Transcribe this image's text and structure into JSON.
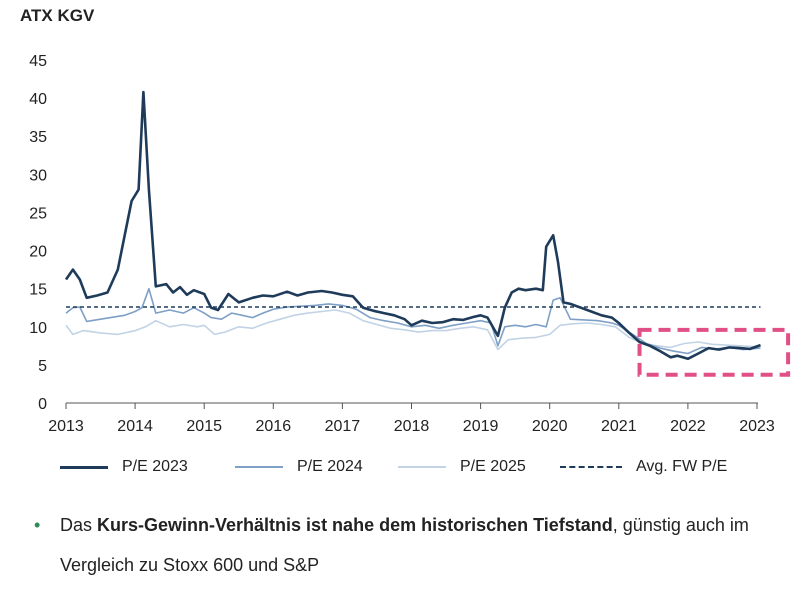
{
  "title": "ATX KGV",
  "chart_data": {
    "type": "line",
    "title": "ATX KGV",
    "xlabel": "",
    "ylabel": "",
    "xlim": [
      2013,
      2023
    ],
    "ylim": [
      0,
      45
    ],
    "yticks": [
      0,
      5,
      10,
      15,
      20,
      25,
      30,
      35,
      40,
      45
    ],
    "xticks": [
      2013,
      2014,
      2015,
      2016,
      2017,
      2018,
      2019,
      2020,
      2021,
      2022,
      2023
    ],
    "grid": false,
    "legend_position": "bottom",
    "series": [
      {
        "name": "P/E 2023",
        "color": "#1f3b5a",
        "style": "solid",
        "x": [
          2013.0,
          2013.1,
          2013.2,
          2013.3,
          2013.45,
          2013.6,
          2013.75,
          2013.85,
          2013.95,
          2014.05,
          2014.12,
          2014.2,
          2014.3,
          2014.45,
          2014.55,
          2014.65,
          2014.75,
          2014.85,
          2015.0,
          2015.1,
          2015.2,
          2015.35,
          2015.5,
          2015.7,
          2015.85,
          2016.0,
          2016.2,
          2016.35,
          2016.5,
          2016.7,
          2016.85,
          2017.0,
          2017.15,
          2017.3,
          2017.45,
          2017.6,
          2017.75,
          2017.9,
          2018.0,
          2018.15,
          2018.3,
          2018.45,
          2018.6,
          2018.75,
          2018.9,
          2019.0,
          2019.1,
          2019.25,
          2019.35,
          2019.45,
          2019.55,
          2019.65,
          2019.8,
          2019.9,
          2019.95,
          2020.05,
          2020.12,
          2020.2,
          2020.3,
          2020.45,
          2020.6,
          2020.75,
          2020.9,
          2021.0,
          2021.15,
          2021.3,
          2021.45,
          2021.6,
          2021.75,
          2021.85,
          2022.0,
          2022.15,
          2022.3,
          2022.45,
          2022.6,
          2022.75,
          2022.9,
          2023.05
        ],
        "y": [
          16.2,
          17.5,
          16.2,
          13.8,
          14.1,
          14.5,
          17.5,
          22.0,
          26.5,
          28.0,
          40.8,
          28.0,
          15.3,
          15.6,
          14.5,
          15.2,
          14.2,
          14.8,
          14.3,
          12.5,
          12.2,
          14.3,
          13.2,
          13.8,
          14.1,
          14.0,
          14.6,
          14.1,
          14.5,
          14.7,
          14.5,
          14.2,
          14.0,
          12.5,
          12.1,
          11.8,
          11.5,
          11.0,
          10.2,
          10.8,
          10.5,
          10.6,
          11.0,
          10.9,
          11.3,
          11.5,
          11.2,
          8.8,
          12.5,
          14.5,
          15.0,
          14.8,
          15.0,
          14.8,
          20.5,
          22.0,
          18.5,
          13.2,
          13.0,
          12.5,
          12.0,
          11.5,
          11.2,
          10.5,
          9.2,
          8.0,
          7.5,
          6.8,
          6.0,
          6.2,
          5.8,
          6.5,
          7.2,
          7.0,
          7.3,
          7.2,
          7.1,
          7.6
        ]
      },
      {
        "name": "P/E 2024",
        "color": "#7e9fc6",
        "style": "solid",
        "x": [
          2013.0,
          2013.1,
          2013.2,
          2013.3,
          2013.5,
          2013.7,
          2013.85,
          2014.0,
          2014.1,
          2014.2,
          2014.3,
          2014.5,
          2014.7,
          2014.85,
          2015.0,
          2015.1,
          2015.25,
          2015.4,
          2015.55,
          2015.7,
          2015.85,
          2016.0,
          2016.2,
          2016.4,
          2016.6,
          2016.8,
          2017.0,
          2017.2,
          2017.4,
          2017.6,
          2017.8,
          2018.0,
          2018.2,
          2018.4,
          2018.6,
          2018.8,
          2019.0,
          2019.15,
          2019.25,
          2019.35,
          2019.5,
          2019.65,
          2019.8,
          2019.95,
          2020.05,
          2020.15,
          2020.3,
          2020.5,
          2020.7,
          2020.9,
          2021.0,
          2021.2,
          2021.4,
          2021.6,
          2021.8,
          2022.0,
          2022.2,
          2022.4,
          2022.6,
          2022.8,
          2023.05
        ],
        "y": [
          11.8,
          12.5,
          12.6,
          10.7,
          11.0,
          11.3,
          11.5,
          12.0,
          12.5,
          15.0,
          11.8,
          12.2,
          11.8,
          12.5,
          11.8,
          11.2,
          11.0,
          11.8,
          11.5,
          11.2,
          11.8,
          12.3,
          12.6,
          12.7,
          12.8,
          13.0,
          12.8,
          12.3,
          11.2,
          10.8,
          10.5,
          10.0,
          10.2,
          9.8,
          10.2,
          10.5,
          10.8,
          10.5,
          7.5,
          10.0,
          10.2,
          10.0,
          10.3,
          10.0,
          13.5,
          13.8,
          11.0,
          10.9,
          10.8,
          10.5,
          10.2,
          9.0,
          7.8,
          7.2,
          6.8,
          6.5,
          7.3,
          7.1,
          7.3,
          7.0,
          7.2
        ]
      },
      {
        "name": "P/E 2025",
        "color": "#c2d3e6",
        "style": "solid",
        "x": [
          2013.0,
          2013.1,
          2013.25,
          2013.5,
          2013.75,
          2014.0,
          2014.15,
          2014.3,
          2014.5,
          2014.7,
          2014.9,
          2015.0,
          2015.15,
          2015.3,
          2015.5,
          2015.7,
          2015.9,
          2016.1,
          2016.3,
          2016.5,
          2016.7,
          2016.9,
          2017.1,
          2017.3,
          2017.5,
          2017.7,
          2017.9,
          2018.1,
          2018.3,
          2018.5,
          2018.7,
          2018.9,
          2019.1,
          2019.25,
          2019.4,
          2019.6,
          2019.8,
          2020.0,
          2020.15,
          2020.35,
          2020.55,
          2020.75,
          2020.95,
          2021.15,
          2021.35,
          2021.55,
          2021.75,
          2021.95,
          2022.15,
          2022.35,
          2022.55,
          2022.75,
          2022.95,
          2023.05
        ],
        "y": [
          10.2,
          9.0,
          9.5,
          9.2,
          9.0,
          9.5,
          10.0,
          10.8,
          10.0,
          10.3,
          10.0,
          10.2,
          9.0,
          9.3,
          10.0,
          9.8,
          10.5,
          11.0,
          11.5,
          11.8,
          12.0,
          12.2,
          11.8,
          10.8,
          10.3,
          9.8,
          9.6,
          9.3,
          9.5,
          9.5,
          9.8,
          10.0,
          9.6,
          7.0,
          8.3,
          8.5,
          8.6,
          9.0,
          10.2,
          10.4,
          10.5,
          10.3,
          10.0,
          8.6,
          7.8,
          7.5,
          7.3,
          7.8,
          8.0,
          7.7,
          7.6,
          7.5,
          7.4,
          7.6
        ]
      },
      {
        "name": "Avg. FW P/E",
        "color": "#1f3b5a",
        "style": "dashed",
        "x": [
          2013.0,
          2023.05
        ],
        "y": [
          12.6,
          12.6
        ]
      }
    ],
    "highlight_box": {
      "color": "#e04f86",
      "x_range": [
        2021.3,
        2023.45
      ],
      "y_range": [
        3.7,
        9.6
      ]
    }
  },
  "bullet": {
    "pre": "Das ",
    "bold1": "Kurs-Gewinn-Verhältnis ist nahe dem historischen Tiefstand",
    "post": ", günstig auch im Vergleich zu Stoxx 600 und S&P",
    "bullet_color": "#2e8b57"
  }
}
